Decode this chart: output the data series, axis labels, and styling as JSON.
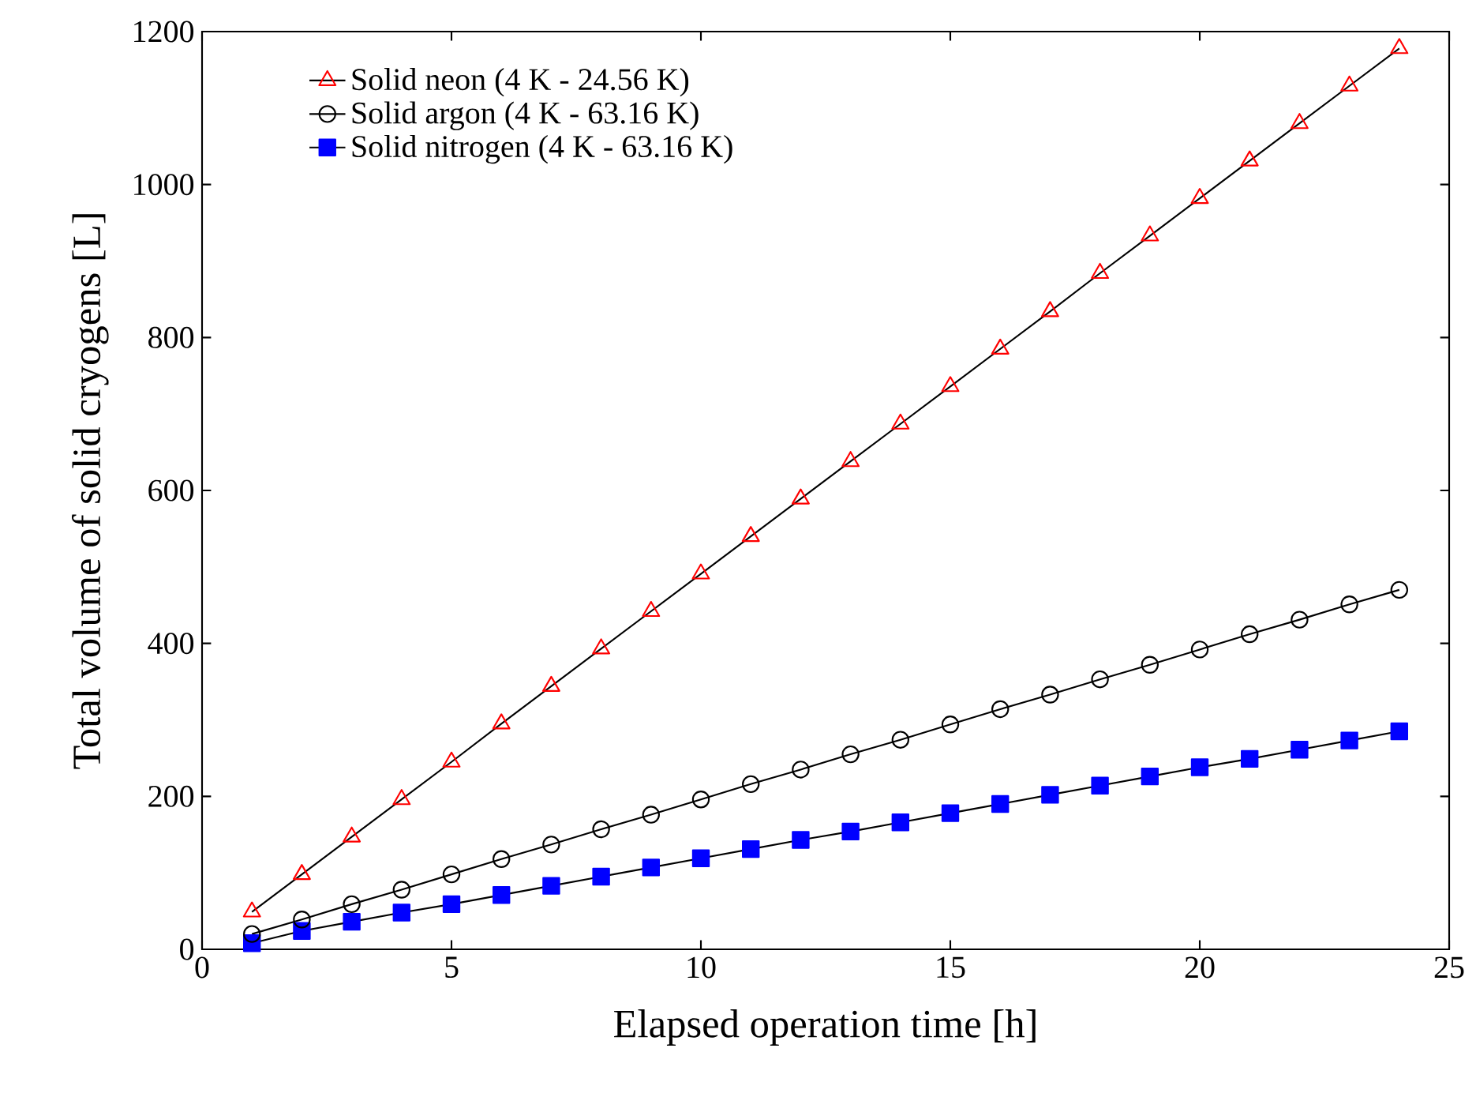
{
  "chart_data": {
    "type": "line",
    "xlabel": "Elapsed operation time [h]",
    "ylabel": "Total volume of solid cryogens [L]",
    "x": [
      1,
      2,
      3,
      4,
      5,
      6,
      7,
      8,
      9,
      10,
      11,
      12,
      13,
      14,
      15,
      16,
      17,
      18,
      19,
      20,
      21,
      22,
      23,
      24
    ],
    "series": [
      {
        "name": "Solid neon (4 K - 24.56 K)",
        "color": "#ff0000",
        "marker": "triangle",
        "values": [
          49,
          98,
          147,
          196,
          245,
          295,
          344,
          393,
          442,
          491,
          540,
          589,
          638,
          687,
          736,
          785,
          834,
          884,
          933,
          982,
          1031,
          1080,
          1129,
          1178
        ]
      },
      {
        "name": "Solid argon (4 K - 63.16 K)",
        "color": "#000000",
        "marker": "circle",
        "values": [
          20,
          39,
          59,
          78,
          98,
          118,
          137,
          157,
          176,
          196,
          216,
          235,
          255,
          274,
          294,
          314,
          333,
          353,
          372,
          392,
          412,
          431,
          451,
          470
        ]
      },
      {
        "name": "Solid nitrogen (4 K - 63.16 K)",
        "color": "#0000ff",
        "marker": "square",
        "values": [
          8,
          24,
          36,
          48,
          59,
          71,
          83,
          95,
          107,
          119,
          131,
          143,
          154,
          166,
          178,
          190,
          202,
          214,
          226,
          238,
          249,
          261,
          273,
          285
        ]
      }
    ],
    "xlim": [
      0,
      25
    ],
    "xticks": [
      0,
      5,
      10,
      15,
      20,
      25
    ],
    "ylim": [
      0,
      1200
    ],
    "yticks": [
      0,
      200,
      400,
      600,
      800,
      1000,
      1200
    ],
    "grid": false,
    "legend": "top left",
    "line_style": "solid"
  }
}
